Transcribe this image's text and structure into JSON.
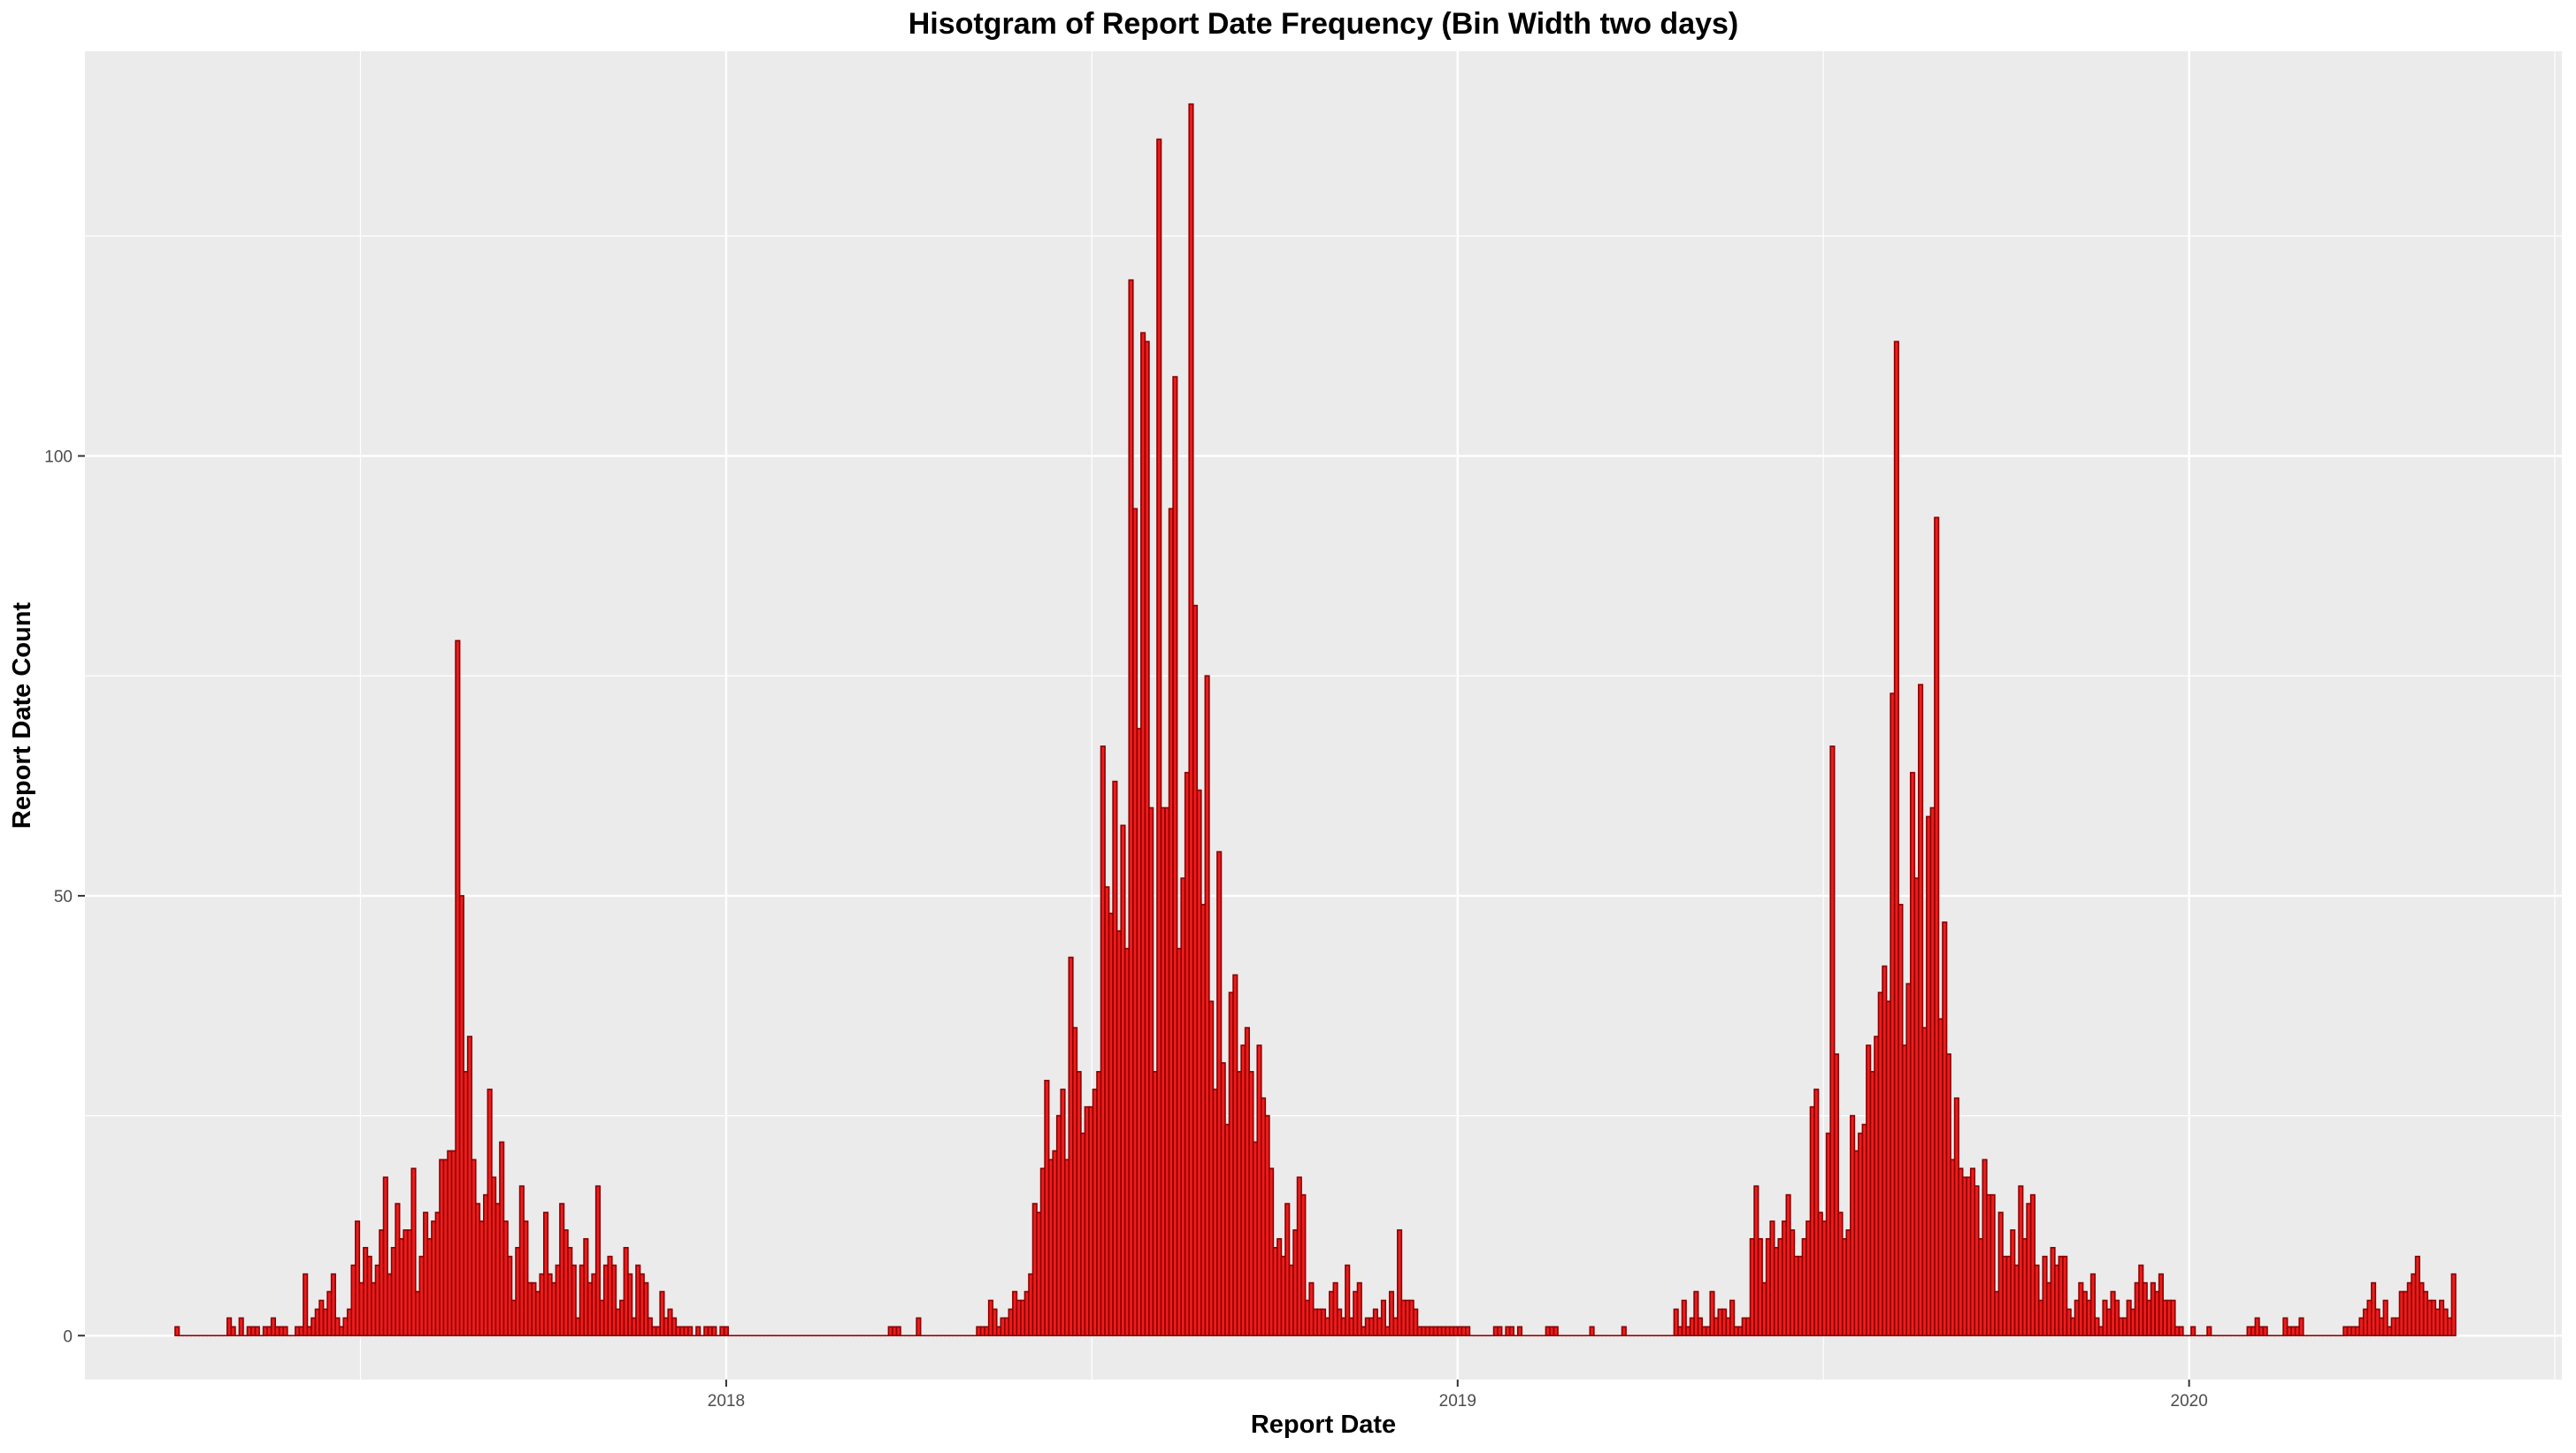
{
  "chart_data": {
    "type": "bar",
    "title": "Hisotgram of Report Date Frequency (Bin Width two days)",
    "xlabel": "Report Date",
    "ylabel": "Report Date Count",
    "bin_width_days": 2,
    "x_ticks": [
      "2018-01-01",
      "2019-01-01",
      "2020-01-01"
    ],
    "x_tick_labels": [
      "2018",
      "2019",
      "2020"
    ],
    "xlim": [
      "2017-02-15",
      "2020-07-05"
    ],
    "y_ticks": [
      0,
      50,
      100
    ],
    "ylim": [
      -5,
      146
    ],
    "grid": true,
    "colors": {
      "panel": "#ebebeb",
      "grid": "#ffffff",
      "bar_fill": "#ee1c1c",
      "bar_outline": "#8b0000"
    },
    "series": [
      {
        "x_start": "2017-04-01",
        "counts": [
          1,
          0,
          0,
          0,
          0,
          0,
          0,
          0,
          0,
          0,
          0,
          0,
          0,
          2,
          1,
          0,
          2,
          0,
          1,
          1,
          1,
          0,
          1,
          1,
          2,
          1,
          1,
          1,
          0,
          0,
          1,
          1,
          7,
          1,
          2,
          3,
          4,
          3,
          5,
          7,
          2,
          1,
          2,
          3,
          8,
          13,
          6,
          10,
          9,
          6,
          8,
          12,
          18,
          7,
          10,
          15,
          11,
          12,
          12,
          19,
          5,
          9,
          14,
          11,
          13,
          14,
          20,
          20,
          21,
          21,
          79,
          50,
          30,
          34,
          20,
          15,
          13,
          16,
          28,
          18,
          15,
          22,
          13,
          9,
          4,
          10,
          17,
          13,
          6,
          6,
          5,
          7,
          14,
          7,
          6,
          8,
          15,
          12,
          10,
          8,
          2,
          8,
          11,
          6,
          7,
          17,
          4,
          8,
          9,
          8,
          3,
          4,
          10,
          7,
          2,
          8,
          7,
          6,
          2,
          1,
          1,
          5,
          2,
          3,
          2,
          1,
          1,
          1,
          1,
          0,
          1,
          0,
          1,
          1,
          1,
          0,
          1,
          1,
          0,
          0,
          0,
          0,
          0,
          0,
          0,
          0,
          0,
          0,
          0,
          0,
          0,
          0,
          0,
          0,
          0,
          0,
          0,
          0,
          0,
          0,
          0,
          0,
          0,
          0,
          0,
          0,
          0,
          0,
          0,
          0,
          0,
          0,
          0,
          0,
          0,
          0,
          0,
          0,
          1,
          1,
          1,
          0,
          0,
          0,
          0,
          2,
          0,
          0,
          0,
          0,
          0,
          0,
          0,
          0,
          0,
          0,
          0,
          0,
          0,
          0,
          1,
          1,
          1,
          4,
          3,
          1,
          2,
          2,
          3,
          5,
          4,
          4,
          5,
          7,
          15,
          14,
          19,
          29,
          20,
          21,
          25,
          28,
          20,
          43,
          35,
          30,
          23,
          26,
          26,
          28,
          30,
          67,
          51,
          48,
          63,
          46,
          58,
          44,
          120,
          94,
          69,
          114,
          113,
          60,
          30,
          136,
          60,
          60,
          94,
          109,
          44,
          52,
          64,
          140,
          83,
          62,
          49,
          75,
          38,
          28,
          55,
          31,
          24,
          39,
          41,
          30,
          33,
          35,
          30,
          22,
          33,
          27,
          25,
          19,
          10,
          11,
          9,
          15,
          8,
          12,
          18,
          16,
          4,
          6,
          3,
          3,
          3,
          2,
          5,
          6,
          3,
          2,
          8,
          2,
          5,
          6,
          1,
          2,
          2,
          3,
          2,
          4,
          1,
          5,
          2,
          12,
          4,
          4,
          4,
          3,
          1,
          1,
          1,
          1,
          1,
          1,
          1,
          1,
          1,
          1,
          1,
          1,
          1,
          0,
          0,
          0,
          0,
          0,
          0,
          1,
          1,
          0,
          1,
          1,
          0,
          1,
          0,
          0,
          0,
          0,
          0,
          0,
          1,
          1,
          1,
          0,
          0,
          0,
          0,
          0,
          0,
          0,
          0,
          1,
          0,
          0,
          0,
          0,
          0,
          0,
          0,
          1,
          0,
          0,
          0,
          0,
          0,
          0,
          0,
          0,
          0,
          0,
          0,
          0,
          3,
          1,
          4,
          1,
          2,
          5,
          2,
          1,
          1,
          5,
          2,
          3,
          3,
          2,
          4,
          1,
          1,
          2,
          2,
          11,
          17,
          11,
          6,
          11,
          13,
          10,
          11,
          13,
          16,
          12,
          9,
          9,
          11,
          13,
          26,
          28,
          14,
          13,
          23,
          67,
          32,
          14,
          11,
          12,
          25,
          21,
          23,
          24,
          33,
          30,
          34,
          39,
          42,
          38,
          73,
          113,
          49,
          33,
          40,
          64,
          52,
          74,
          35,
          59,
          60,
          93,
          36,
          47,
          32,
          20,
          27,
          19,
          18,
          18,
          19,
          17,
          11,
          20,
          16,
          16,
          5,
          14,
          9,
          9,
          12,
          8,
          17,
          11,
          15,
          16,
          8,
          4,
          9,
          6,
          10,
          8,
          9,
          9,
          3,
          2,
          4,
          6,
          5,
          4,
          7,
          2,
          1,
          4,
          3,
          5,
          4,
          2,
          2,
          4,
          3,
          6,
          8,
          6,
          4,
          6,
          5,
          7,
          4,
          4,
          4,
          1,
          1,
          0,
          0,
          1,
          0,
          0,
          0,
          1,
          0,
          0,
          0,
          0,
          0,
          0,
          0,
          0,
          0,
          1,
          1,
          2,
          1,
          1,
          0,
          0,
          0,
          0,
          2,
          1,
          1,
          1,
          2,
          0,
          0,
          0,
          0,
          0,
          0,
          0,
          0,
          0,
          0,
          1,
          1,
          1,
          1,
          2,
          3,
          4,
          6,
          3,
          2,
          4,
          1,
          2,
          2,
          5,
          5,
          6,
          7,
          9,
          6,
          5,
          4,
          4,
          3,
          4,
          3,
          2,
          7
        ]
      }
    ]
  }
}
